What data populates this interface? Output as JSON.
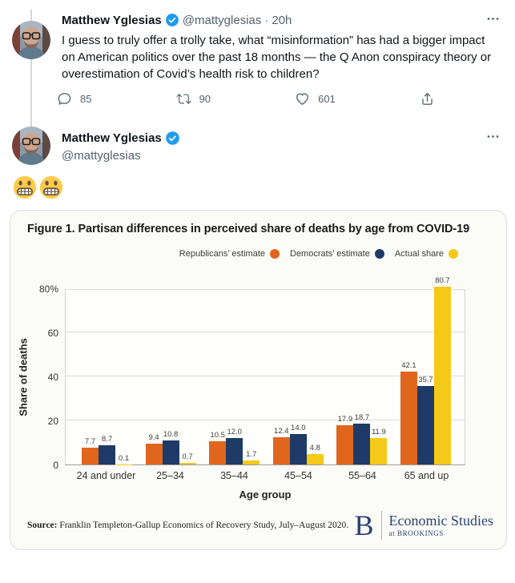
{
  "tweet1": {
    "name": "Matthew Yglesias",
    "handle": "@mattyglesias",
    "separator": "·",
    "time": "20h",
    "text": "I guess to truly offer a trolly take, what “misinformation” has had a bigger impact on American politics over the past 18 months — the Q Anon conspiracy theory or overestimation of Covid’s health risk to children?",
    "actions": {
      "reply": "85",
      "retweet": "90",
      "like": "601"
    }
  },
  "tweet2": {
    "name": "Matthew Yglesias",
    "handle": "@mattyglesias",
    "emoji": "😬😬"
  },
  "figure": {
    "title": "Figure 1. Partisan differences in perceived share of deaths by age from COVID-19",
    "source_label": "Source:",
    "source_text": "Franklin Templeton-Gallup Economics of Recovery Study, July–August 2020.",
    "logo_letter": "B",
    "logo_line1": "Economic Studies",
    "logo_line2": "at BROOKINGS"
  },
  "chart_data": {
    "type": "bar",
    "title": "Figure 1. Partisan differences in perceived share of deaths by age from COVID-19",
    "categories": [
      "24 and under",
      "25–34",
      "35–44",
      "45–54",
      "55–64",
      "65 and up"
    ],
    "series": [
      {
        "name": "Republicans’ estimate",
        "color": "#E0661E",
        "values": [
          7.7,
          9.4,
          10.5,
          12.4,
          17.9,
          42.1
        ]
      },
      {
        "name": "Democrats’ estimate",
        "color": "#1E3A66",
        "values": [
          8.7,
          10.8,
          12.0,
          14.0,
          18.7,
          35.7
        ]
      },
      {
        "name": "Actual share",
        "color": "#F5C917",
        "values": [
          0.1,
          0.7,
          1.7,
          4.8,
          11.9,
          80.7
        ]
      }
    ],
    "xlabel": "Age group",
    "ylabel": "Share of deaths",
    "ylim": [
      0,
      80
    ],
    "yticks": [
      {
        "label": "80%",
        "value": 80
      },
      {
        "label": "60",
        "value": 60
      },
      {
        "label": "40",
        "value": 40
      },
      {
        "label": "20",
        "value": 20
      },
      {
        "label": "0",
        "value": 0
      }
    ],
    "gridline_values": [
      20,
      40,
      60
    ],
    "value_label_decimals": 1,
    "grid": true,
    "legend_position": "top-right"
  },
  "colors": {
    "text_primary": "#0f1419",
    "text_secondary": "#536471",
    "verified_blue": "#1d9bf0",
    "thread_line": "#cfd9de",
    "brookings_navy": "#2a4372"
  }
}
